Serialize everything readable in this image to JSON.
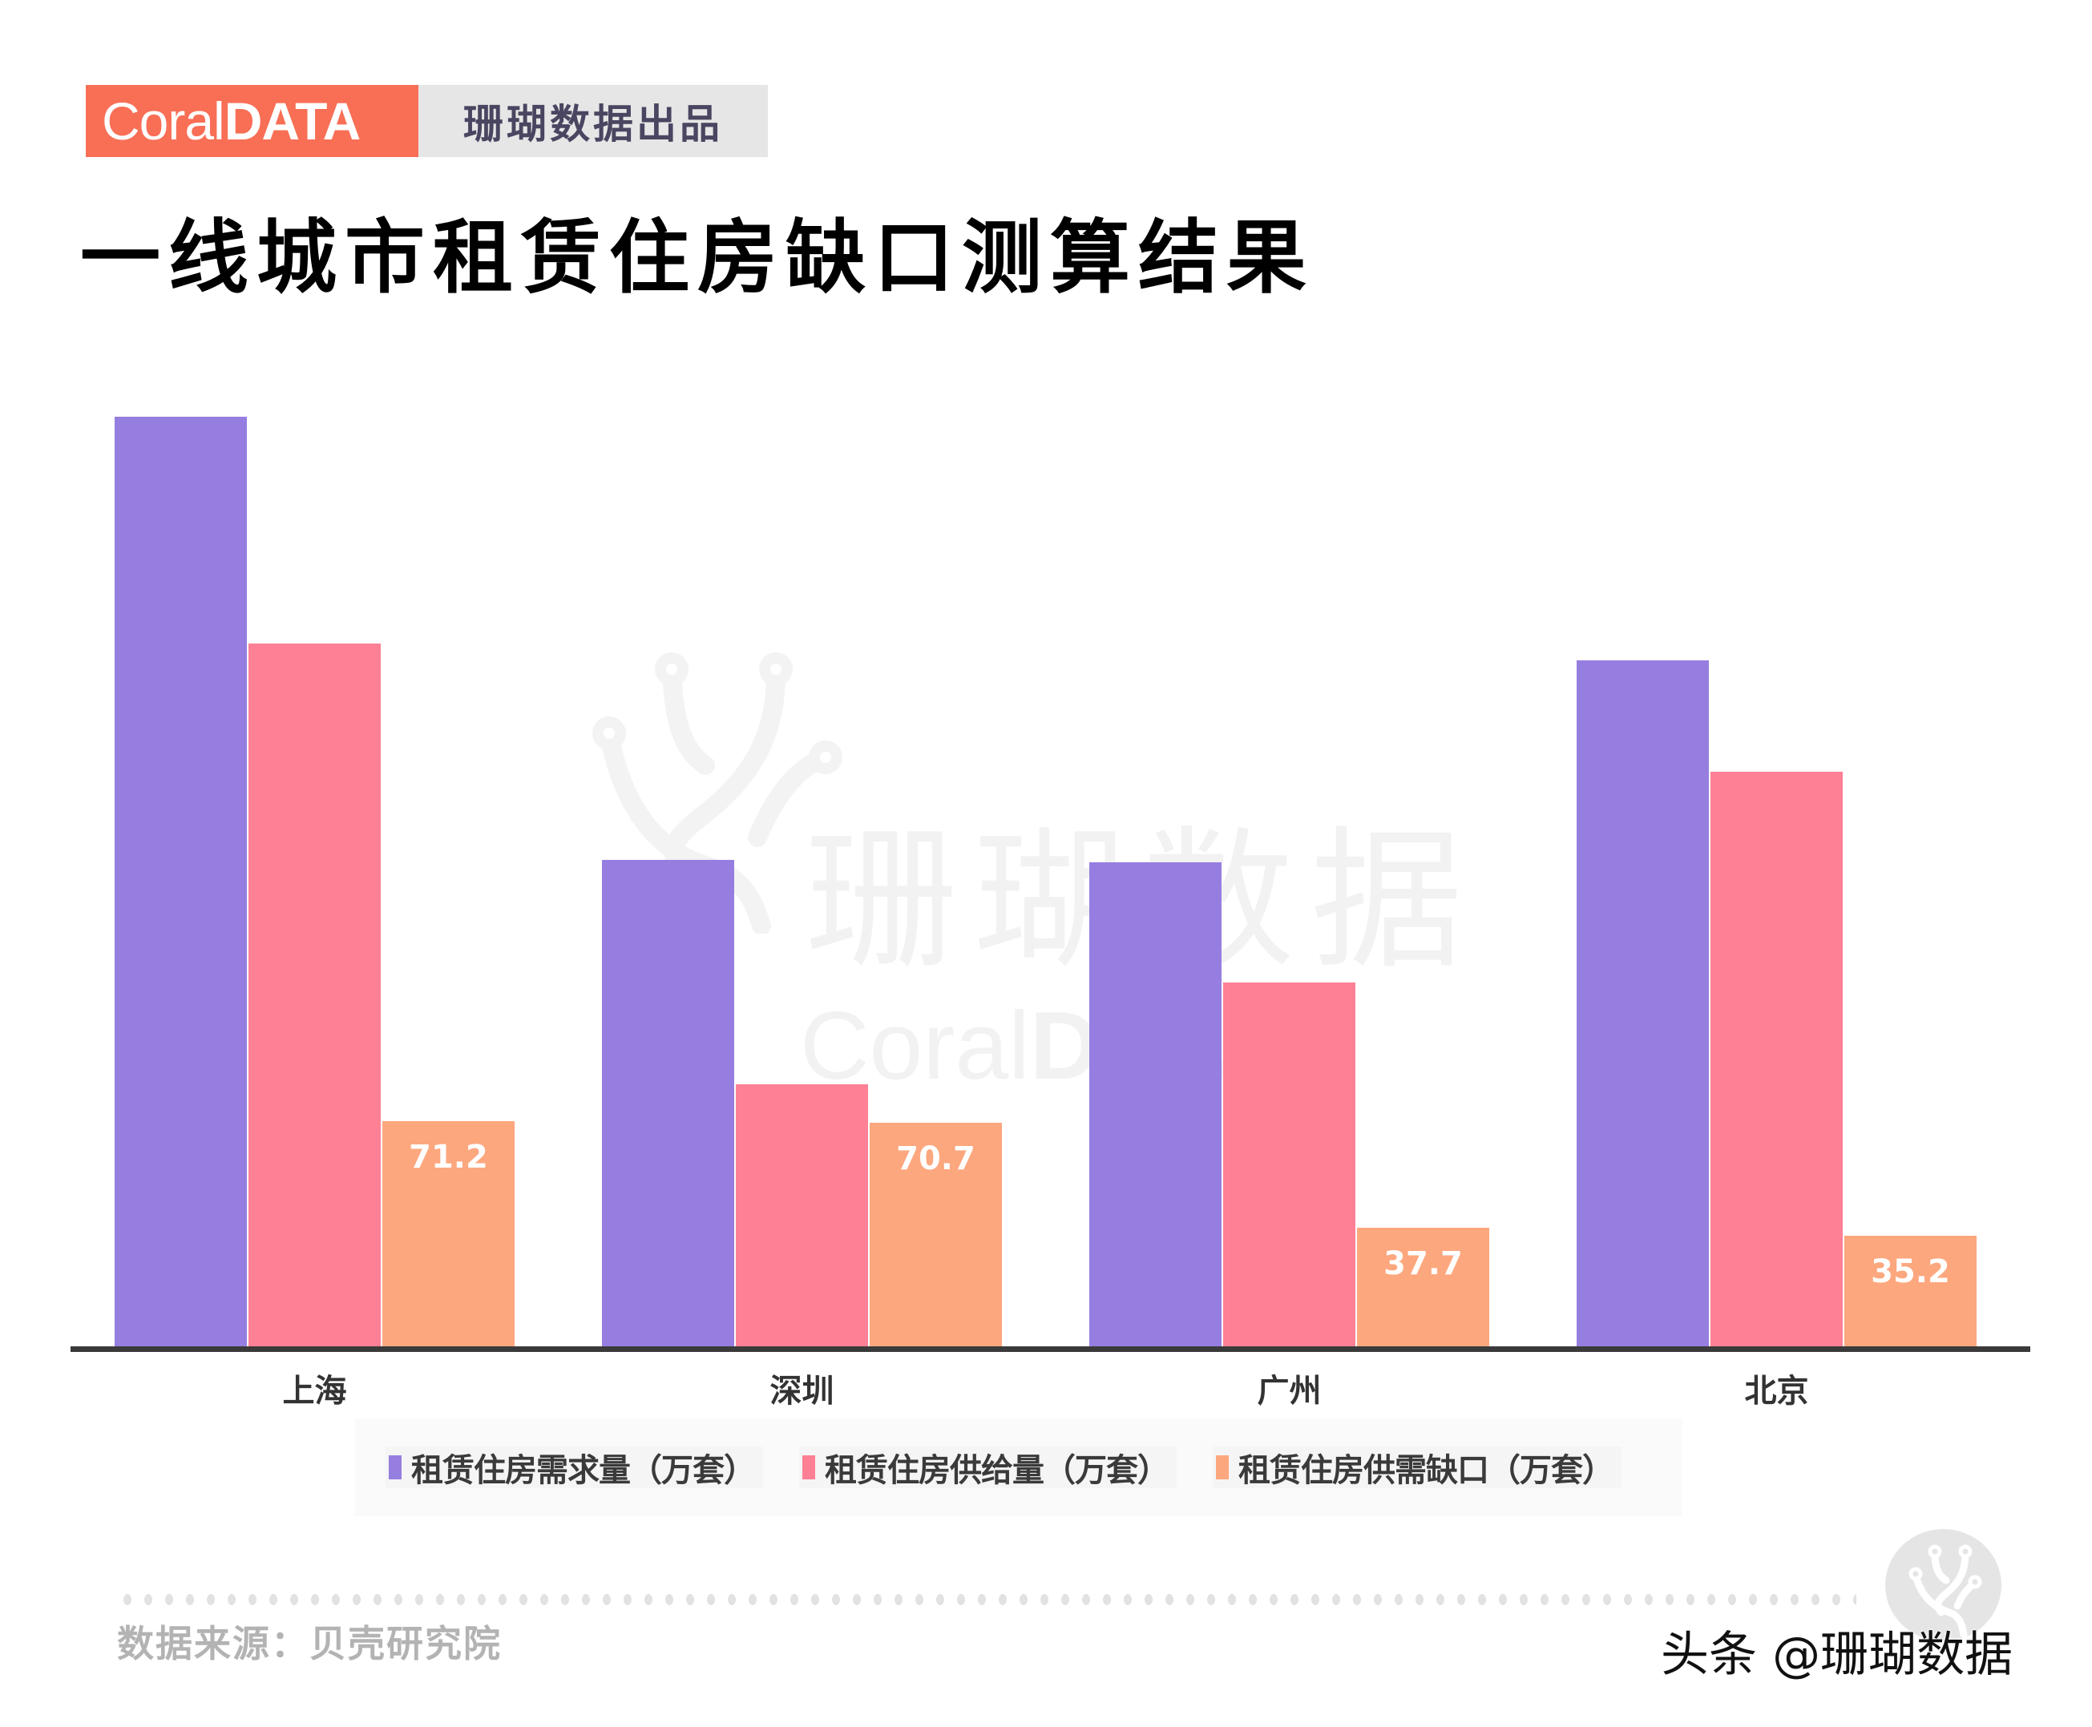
{
  "header": {
    "brand_light": "Coral",
    "brand_bold": "DATA",
    "tagline": "珊瑚数据出品"
  },
  "title": "一线城市租赁住房缺口测算结果",
  "watermark": {
    "cn": "珊瑚数据",
    "en_light": "Coral",
    "en_bold": "DATA"
  },
  "colors": {
    "brand": "#F86F56",
    "demand": "#967EE0",
    "supply": "#FD8095",
    "gap": "#FDA77E",
    "axis": "#3A3A3A"
  },
  "chart_data": {
    "type": "bar",
    "title": "一线城市租赁住房缺口测算结果",
    "xlabel": "",
    "ylabel": "",
    "categories": [
      "上海",
      "深圳",
      "广州",
      "北京"
    ],
    "series": [
      {
        "name": "租赁住房需求量（万套）",
        "values": [
          292.6,
          153.5,
          152.6,
          216.2
        ]
      },
      {
        "name": "租赁住房供给量（万套）",
        "values": [
          221.4,
          82.8,
          114.9,
          181.0
        ]
      },
      {
        "name": "租赁住房供需缺口（万套）",
        "values": [
          71.2,
          70.7,
          37.7,
          35.2
        ]
      }
    ],
    "data_labels": {
      "series_index": 2,
      "labels": [
        "71.2",
        "70.7",
        "37.7",
        "35.2"
      ]
    },
    "ylim": [
      0,
      300
    ],
    "grid": false,
    "y_axis_visible": false,
    "legend_position": "bottom"
  },
  "legend": {
    "items": [
      {
        "label": "租赁住房需求量（万套）"
      },
      {
        "label": "租赁住房供给量（万套）"
      },
      {
        "label": "租赁住房供需缺口（万套）"
      }
    ]
  },
  "footer": {
    "source": "数据来源：贝壳研究院",
    "platform_watermark": "头条 @珊瑚数据"
  }
}
